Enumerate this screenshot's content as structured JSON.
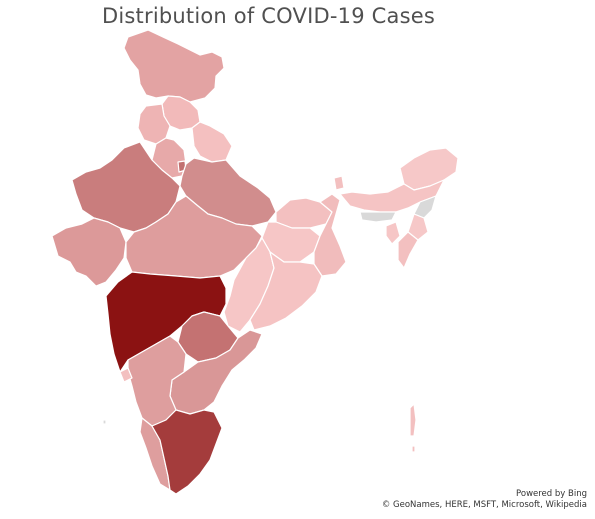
{
  "title": "Distribution of COVID-19 Cases",
  "attribution": {
    "powered_by": "Powered by Bing",
    "credits": "© GeoNames, HERE, MSFT, Microsoft, Wikipedia"
  },
  "legend_scale": {
    "low_color": "#f7c6c6",
    "high_color": "#8b1212",
    "no_data_color": "#d9d9d9"
  },
  "regions": [
    {
      "name": "Jammu and Kashmir",
      "color": "#e3a3a3"
    },
    {
      "name": "Himachal Pradesh",
      "color": "#f2baba"
    },
    {
      "name": "Punjab",
      "color": "#eeb4b4"
    },
    {
      "name": "Uttarakhand",
      "color": "#f4c0c0"
    },
    {
      "name": "Haryana",
      "color": "#e7a9a9"
    },
    {
      "name": "Delhi",
      "color": "#c27070"
    },
    {
      "name": "Rajasthan",
      "color": "#c97d7d"
    },
    {
      "name": "Uttar Pradesh",
      "color": "#d18d8d"
    },
    {
      "name": "Gujarat",
      "color": "#dc9999"
    },
    {
      "name": "Madhya Pradesh",
      "color": "#de9d9d"
    },
    {
      "name": "Bihar",
      "color": "#f3c0c0"
    },
    {
      "name": "Jharkhand",
      "color": "#f6c6c6"
    },
    {
      "name": "West Bengal",
      "color": "#f1bcbc"
    },
    {
      "name": "Chhattisgarh",
      "color": "#f6c6c6"
    },
    {
      "name": "Odisha",
      "color": "#f5c3c3"
    },
    {
      "name": "Maharashtra",
      "color": "#8b1212"
    },
    {
      "name": "Telangana",
      "color": "#c47272"
    },
    {
      "name": "Andhra Pradesh",
      "color": "#d99797"
    },
    {
      "name": "Karnataka",
      "color": "#de9e9e"
    },
    {
      "name": "Goa",
      "color": "#f3c0c0"
    },
    {
      "name": "Kerala",
      "color": "#de9e9e"
    },
    {
      "name": "Tamil Nadu",
      "color": "#a43c3c"
    },
    {
      "name": "Sikkim",
      "color": "#f3c0c0"
    },
    {
      "name": "Arunachal Pradesh",
      "color": "#f6c8c8"
    },
    {
      "name": "Assam",
      "color": "#f5c4c4"
    },
    {
      "name": "Nagaland",
      "color": "#d9d9d9"
    },
    {
      "name": "Manipur",
      "color": "#f6c8c8"
    },
    {
      "name": "Mizoram",
      "color": "#f3c0c0"
    },
    {
      "name": "Tripura",
      "color": "#f6c6c6"
    },
    {
      "name": "Meghalaya",
      "color": "#d9d9d9"
    },
    {
      "name": "Andaman and Nicobar Islands",
      "color": "#f3c0c0"
    }
  ]
}
